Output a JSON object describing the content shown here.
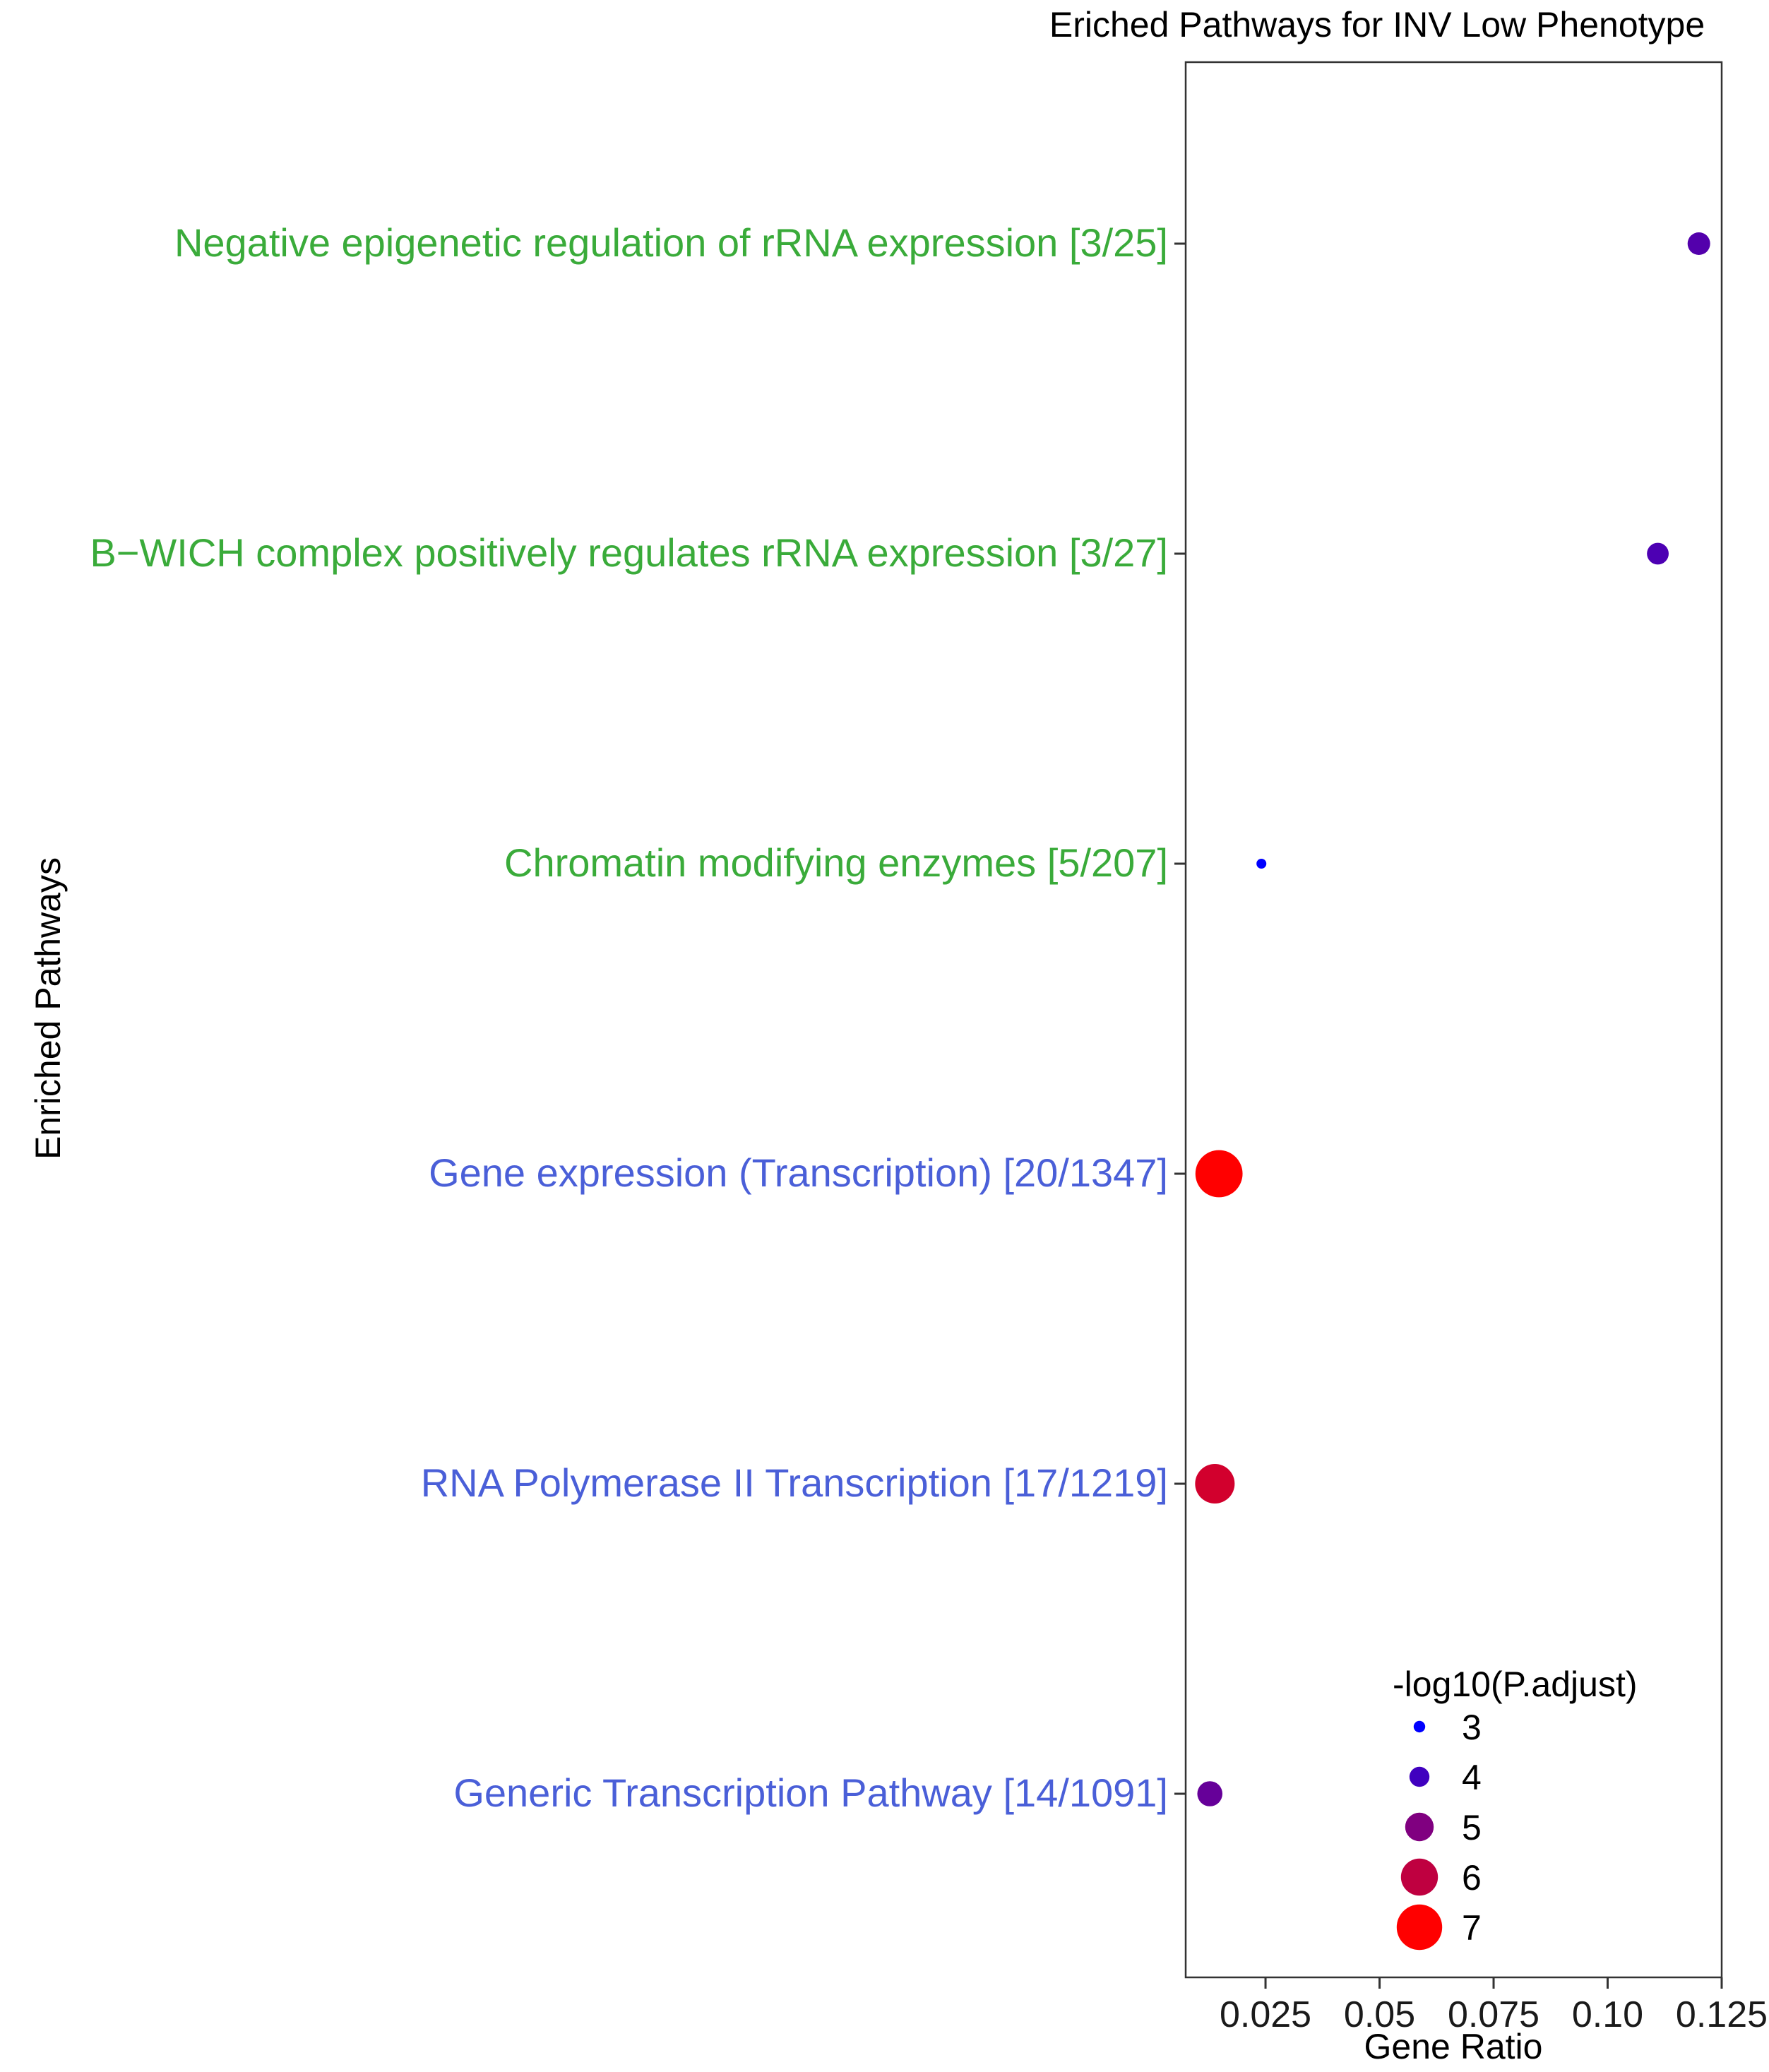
{
  "chart_data": {
    "type": "scatter",
    "title": "Eriched Pathways for INV Low Phenotype",
    "xlabel": "Gene Ratio",
    "ylabel": "Enriched Pathways",
    "xlim": [
      0.0075,
      0.125
    ],
    "x_ticks": [
      0.025,
      0.05,
      0.075,
      0.1,
      0.125
    ],
    "x_tick_labels": [
      "0.025",
      "0.05",
      "0.075",
      "0.10",
      "0.125"
    ],
    "grid": false,
    "legend": {
      "title": "-log10(P.adjust)",
      "placement": "bottom-right-inside",
      "levels": [
        3,
        4,
        5,
        6,
        7
      ]
    },
    "category_colors": {
      "green": "#3aab3a",
      "blue": "#4a5fd8"
    },
    "color_scale": {
      "low": "#0000ff",
      "high": "#ff0000",
      "min": 3,
      "max": 7
    },
    "categories": [
      "Negative epigenetic regulation of rRNA expression [3/25]",
      "B−WICH complex positively regulates rRNA expression [3/27]",
      "Chromatin modifying enzymes [5/207]",
      "Gene expression (Transcription) [20/1347]",
      "RNA Polymerase II Transcription [17/1219]",
      "Generic Transcription Pathway [14/1091]"
    ],
    "category_groups": [
      "green",
      "green",
      "green",
      "blue",
      "blue",
      "blue"
    ],
    "points": [
      {
        "x": 0.12,
        "y": "Negative epigenetic regulation of rRNA expression [3/25]",
        "neglog10_padj": 4.3
      },
      {
        "x": 0.111,
        "y": "B−WICH complex positively regulates rRNA expression [3/27]",
        "neglog10_padj": 4.2
      },
      {
        "x": 0.0241,
        "y": "Chromatin modifying enzymes [5/207]",
        "neglog10_padj": 2.8
      },
      {
        "x": 0.0148,
        "y": "Gene expression (Transcription) [20/1347]",
        "neglog10_padj": 7.2
      },
      {
        "x": 0.0139,
        "y": "RNA Polymerase II Transcription [17/1219]",
        "neglog10_padj": 6.3
      },
      {
        "x": 0.0128,
        "y": "Generic Transcription Pathway [14/1091]",
        "neglog10_padj": 4.6
      }
    ]
  }
}
